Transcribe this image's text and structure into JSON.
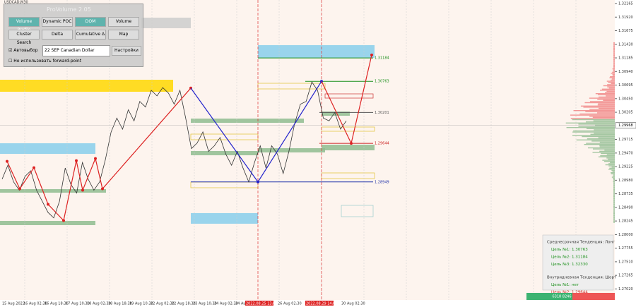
{
  "symbol": "USDCAD,M30",
  "panel": {
    "title": "ProVolume 2.05",
    "buttons": [
      "Volume Profile",
      "Dynamic POC",
      "DOM",
      "Volume",
      "Cluster Search",
      "Delta",
      "Cumulative Δ",
      "Map"
    ],
    "auto_label": "Автовыбор",
    "instrument": "22 SEP Canadian Dollar",
    "settings": "Настройки",
    "forward_label": "Не использовать forward-point"
  },
  "price_axis": {
    "ylim": [
      1.2686,
      1.32165
    ],
    "yticks": [
      {
        "value": 1.32165,
        "label": "1.32165"
      },
      {
        "value": 1.3192,
        "label": "1.31920"
      },
      {
        "value": 1.31675,
        "label": "1.31675"
      },
      {
        "value": 1.3143,
        "label": "1.31430"
      },
      {
        "value": 1.31185,
        "label": "1.31185"
      },
      {
        "value": 1.3094,
        "label": "1.30940"
      },
      {
        "value": 1.30695,
        "label": "1.30695"
      },
      {
        "value": 1.3045,
        "label": "1.30450"
      },
      {
        "value": 1.30205,
        "label": "1.30205"
      },
      {
        "value": 1.29715,
        "label": "1.29715"
      },
      {
        "value": 1.2947,
        "label": "1.29470"
      },
      {
        "value": 1.29225,
        "label": "1.29225"
      },
      {
        "value": 1.2898,
        "label": "1.28980"
      },
      {
        "value": 1.28735,
        "label": "1.28735"
      },
      {
        "value": 1.2849,
        "label": "1.28490"
      },
      {
        "value": 1.28245,
        "label": "1.28245"
      },
      {
        "value": 1.28,
        "label": "1.28000"
      },
      {
        "value": 1.27755,
        "label": "1.27755"
      },
      {
        "value": 1.2751,
        "label": "1.27510"
      },
      {
        "value": 1.27265,
        "label": "1.27265"
      },
      {
        "value": 1.2702,
        "label": "1.27020"
      }
    ],
    "current": 1.29968
  },
  "dates": [
    "15 Aug 2022",
    "16 Aug 02:30",
    "16 Aug 18:30",
    "17 Aug 10:30",
    "18 Aug 02:30",
    "18 Aug 18:30",
    "19 Aug 10:30",
    "22 Aug 02:30",
    "22 Aug 18:30",
    "23 Aug 10:30",
    "24 Aug 02:30",
    "24 Aug 18:30",
    "2022.08.25 13:00",
    "26 Aug 02:30",
    "2022.08.29 14:00",
    "30 Aug 02:30"
  ],
  "price": [
    1.29,
    1.2925,
    1.2895,
    1.288,
    1.2905,
    1.2915,
    1.288,
    1.286,
    1.284,
    1.283,
    1.286,
    1.292,
    1.289,
    1.2875,
    1.293,
    1.29,
    1.288,
    1.2895,
    1.2935,
    1.2985,
    1.301,
    1.299,
    1.3025,
    1.3005,
    1.304,
    1.303,
    1.306,
    1.305,
    1.3065,
    1.3055,
    1.3035,
    1.306,
    1.301,
    1.2955,
    1.2965,
    1.2985,
    1.295,
    1.296,
    1.2975,
    1.2945,
    1.2925,
    1.295,
    1.292,
    1.2895,
    1.293,
    1.296,
    1.292,
    1.296,
    1.2945,
    1.291,
    1.295,
    1.3,
    1.3035,
    1.304,
    1.3075,
    1.306,
    1.301,
    1.3005,
    1.302,
    1.299,
    1.3005
  ],
  "zigzag": [
    1.2932,
    1.28825,
    1.29206,
    1.28546,
    1.28253,
    1.29333,
    1.288,
    1.29371,
    1.28825,
    1.30641,
    1.28949,
    1.30763,
    1.29644,
    1.31238
  ],
  "levels": [
    1.31184,
    1.30763,
    1.30201,
    1.29644,
    1.28949
  ],
  "level_colors": [
    "#1a8f1a",
    "#1a8f1a",
    "#555555",
    "#cc2222",
    "#2233aa"
  ],
  "forecast": {
    "lines": [
      "Среднесрочная Тенденция: Лонг",
      "Цель №1: 1.30763",
      "Цель №2: 1.31184",
      "Цель №3: 1.32330",
      "Внутридневная Тенденция: Шорт",
      "Цель №1: нет",
      "Цель №2: 1.29644"
    ]
  },
  "bottom_bar": "6318 8246"
}
